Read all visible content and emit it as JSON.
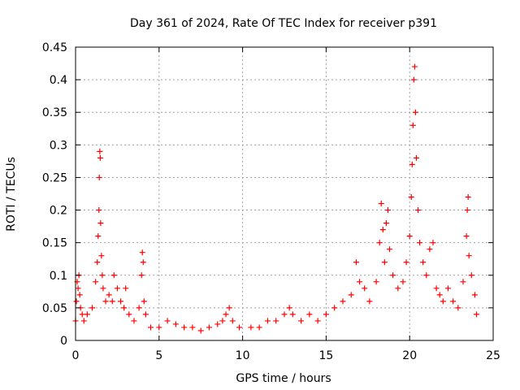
{
  "chart_data": {
    "type": "scatter",
    "title": "Day 361 of 2024, Rate Of TEC Index for receiver p391",
    "xlabel": "GPS time / hours",
    "ylabel": "ROTI / TECUs",
    "xlim": [
      0,
      25
    ],
    "ylim": [
      0,
      0.45
    ],
    "x_ticks": [
      "0",
      "5",
      "10",
      "15",
      "20",
      "25"
    ],
    "y_ticks": [
      "0",
      "0.05",
      "0.1",
      "0.15",
      "0.2",
      "0.25",
      "0.3",
      "0.35",
      "0.4",
      "0.45"
    ],
    "grid": true,
    "marker": "plus",
    "color": "#ff0000",
    "series": [
      {
        "values": [
          [
            0.0,
            0.03
          ],
          [
            0.05,
            0.06
          ],
          [
            0.1,
            0.09
          ],
          [
            0.15,
            0.08
          ],
          [
            0.2,
            0.1
          ],
          [
            0.25,
            0.07
          ],
          [
            0.3,
            0.05
          ],
          [
            0.4,
            0.04
          ],
          [
            0.5,
            0.03
          ],
          [
            0.7,
            0.04
          ],
          [
            1.0,
            0.05
          ],
          [
            1.2,
            0.09
          ],
          [
            1.3,
            0.12
          ],
          [
            1.35,
            0.16
          ],
          [
            1.4,
            0.2
          ],
          [
            1.42,
            0.25
          ],
          [
            1.45,
            0.29
          ],
          [
            1.48,
            0.28
          ],
          [
            1.5,
            0.18
          ],
          [
            1.55,
            0.13
          ],
          [
            1.6,
            0.1
          ],
          [
            1.65,
            0.08
          ],
          [
            1.8,
            0.06
          ],
          [
            2.0,
            0.07
          ],
          [
            2.2,
            0.06
          ],
          [
            2.3,
            0.1
          ],
          [
            2.5,
            0.08
          ],
          [
            2.7,
            0.06
          ],
          [
            2.9,
            0.05
          ],
          [
            3.0,
            0.08
          ],
          [
            3.2,
            0.04
          ],
          [
            3.5,
            0.03
          ],
          [
            3.8,
            0.05
          ],
          [
            3.95,
            0.1
          ],
          [
            4.0,
            0.135
          ],
          [
            4.05,
            0.12
          ],
          [
            4.1,
            0.06
          ],
          [
            4.2,
            0.04
          ],
          [
            4.5,
            0.02
          ],
          [
            5.0,
            0.02
          ],
          [
            5.5,
            0.03
          ],
          [
            6.0,
            0.025
          ],
          [
            6.5,
            0.02
          ],
          [
            7.0,
            0.02
          ],
          [
            7.5,
            0.015
          ],
          [
            8.0,
            0.02
          ],
          [
            8.5,
            0.025
          ],
          [
            8.8,
            0.03
          ],
          [
            9.0,
            0.04
          ],
          [
            9.2,
            0.05
          ],
          [
            9.4,
            0.03
          ],
          [
            9.8,
            0.02
          ],
          [
            10.5,
            0.02
          ],
          [
            11.0,
            0.02
          ],
          [
            11.5,
            0.03
          ],
          [
            12.0,
            0.03
          ],
          [
            12.5,
            0.04
          ],
          [
            12.8,
            0.05
          ],
          [
            13.0,
            0.04
          ],
          [
            13.5,
            0.03
          ],
          [
            14.0,
            0.04
          ],
          [
            14.5,
            0.03
          ],
          [
            15.0,
            0.04
          ],
          [
            15.5,
            0.05
          ],
          [
            16.0,
            0.06
          ],
          [
            16.5,
            0.07
          ],
          [
            16.8,
            0.12
          ],
          [
            17.0,
            0.09
          ],
          [
            17.3,
            0.08
          ],
          [
            17.6,
            0.06
          ],
          [
            18.0,
            0.09
          ],
          [
            18.2,
            0.15
          ],
          [
            18.3,
            0.21
          ],
          [
            18.4,
            0.17
          ],
          [
            18.5,
            0.12
          ],
          [
            18.6,
            0.18
          ],
          [
            18.7,
            0.2
          ],
          [
            18.8,
            0.14
          ],
          [
            19.0,
            0.1
          ],
          [
            19.3,
            0.08
          ],
          [
            19.6,
            0.09
          ],
          [
            19.8,
            0.12
          ],
          [
            20.0,
            0.16
          ],
          [
            20.1,
            0.22
          ],
          [
            20.15,
            0.27
          ],
          [
            20.2,
            0.33
          ],
          [
            20.25,
            0.4
          ],
          [
            20.3,
            0.42
          ],
          [
            20.35,
            0.35
          ],
          [
            20.4,
            0.28
          ],
          [
            20.5,
            0.2
          ],
          [
            20.6,
            0.15
          ],
          [
            20.8,
            0.12
          ],
          [
            21.0,
            0.1
          ],
          [
            21.2,
            0.14
          ],
          [
            21.4,
            0.15
          ],
          [
            21.6,
            0.08
          ],
          [
            21.8,
            0.07
          ],
          [
            22.0,
            0.06
          ],
          [
            22.3,
            0.08
          ],
          [
            22.6,
            0.06
          ],
          [
            22.9,
            0.05
          ],
          [
            23.2,
            0.09
          ],
          [
            23.4,
            0.16
          ],
          [
            23.45,
            0.2
          ],
          [
            23.5,
            0.22
          ],
          [
            23.55,
            0.13
          ],
          [
            23.7,
            0.1
          ],
          [
            23.9,
            0.07
          ],
          [
            24.0,
            0.04
          ]
        ]
      }
    ]
  }
}
